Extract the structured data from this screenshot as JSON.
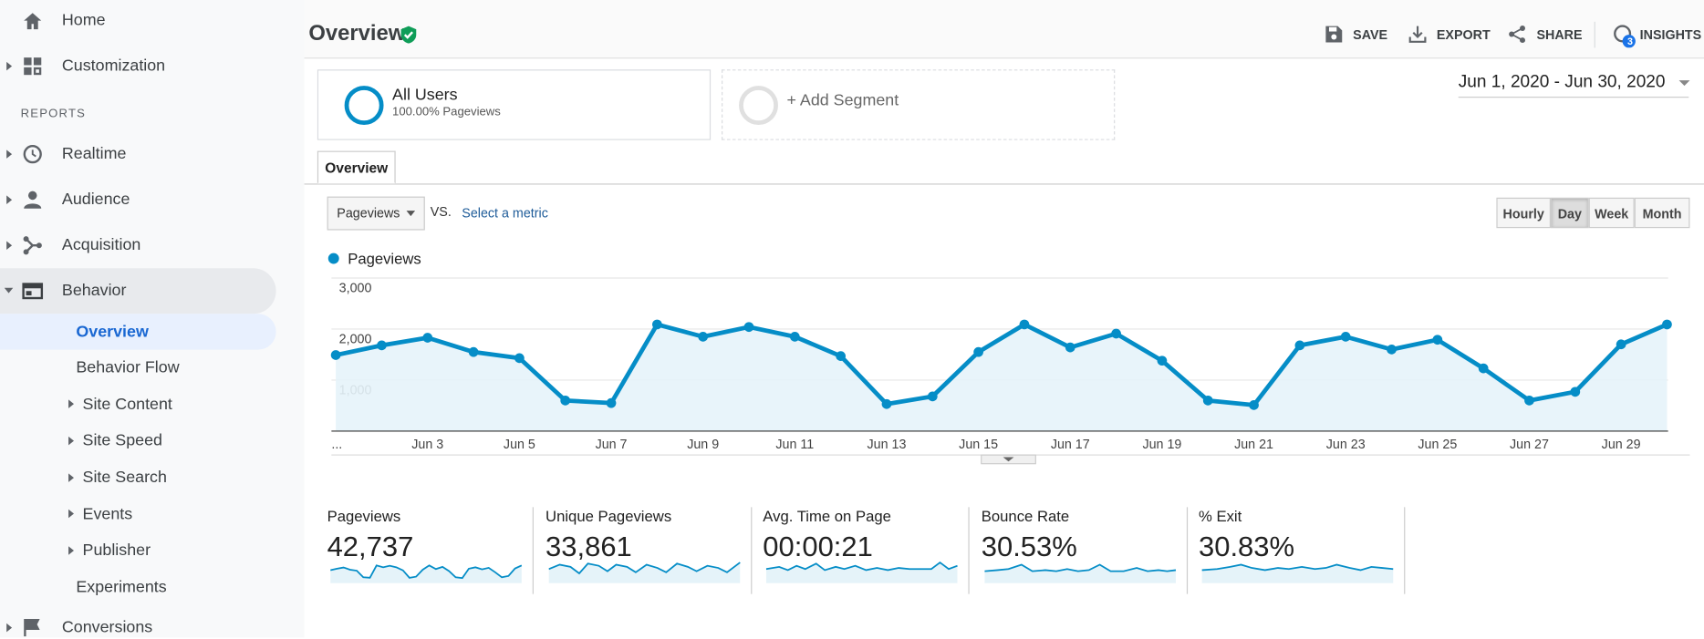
{
  "sidebar": {
    "home": "Home",
    "customization": "Customization",
    "reports_heading": "REPORTS",
    "realtime": "Realtime",
    "audience": "Audience",
    "acquisition": "Acquisition",
    "behavior": "Behavior",
    "behavior_items": [
      "Overview",
      "Behavior Flow",
      "Site Content",
      "Site Speed",
      "Site Search",
      "Events",
      "Publisher",
      "Experiments"
    ],
    "conversions": "Conversions"
  },
  "header": {
    "title": "Overview",
    "actions": [
      "SAVE",
      "EXPORT",
      "SHARE",
      "INSIGHTS"
    ],
    "insights_badge": "3"
  },
  "segments": {
    "active_name": "All Users",
    "active_detail": "100.00% Pageviews",
    "add": "+ Add Segment"
  },
  "date_range": "Jun 1, 2020 - Jun 30, 2020",
  "tab": "Overview",
  "controls": {
    "metric": "Pageviews",
    "vs": "VS.",
    "select_metric": "Select a metric",
    "granularity": [
      "Hourly",
      "Day",
      "Week",
      "Month"
    ],
    "active_granularity": "Day"
  },
  "chart_data": {
    "type": "line",
    "categories": [
      "...",
      null,
      "Jun 3",
      null,
      "Jun 5",
      null,
      "Jun 7",
      null,
      "Jun 9",
      null,
      "Jun 11",
      null,
      "Jun 13",
      null,
      "Jun 15",
      null,
      "Jun 17",
      null,
      "Jun 19",
      null,
      "Jun 21",
      null,
      "Jun 23",
      null,
      "Jun 25",
      null,
      "Jun 27",
      null,
      "Jun 29",
      null
    ],
    "series": [
      {
        "name": "Pageviews",
        "color": "#058dc7",
        "values": [
          1490,
          1680,
          1830,
          1550,
          1430,
          600,
          550,
          2090,
          1850,
          2040,
          1850,
          1470,
          530,
          680,
          1550,
          2090,
          1640,
          1910,
          1380,
          600,
          510,
          1680,
          1850,
          1600,
          1790,
          1230,
          600,
          770,
          1700,
          2090
        ]
      }
    ],
    "ylim": [
      0,
      3000
    ],
    "yticks": [
      {
        "value": 1000,
        "label": "1,000"
      },
      {
        "value": 2000,
        "label": "2,000"
      },
      {
        "value": 3000,
        "label": "3,000"
      }
    ],
    "grid": true,
    "area": true
  },
  "summary": [
    {
      "label": "Pageviews",
      "value": "42,737"
    },
    {
      "label": "Unique Pageviews",
      "value": "33,861"
    },
    {
      "label": "Avg. Time on Page",
      "value": "00:00:21"
    },
    {
      "label": "Bounce Rate",
      "value": "30.53%"
    },
    {
      "label": "% Exit",
      "value": "30.83%"
    }
  ]
}
